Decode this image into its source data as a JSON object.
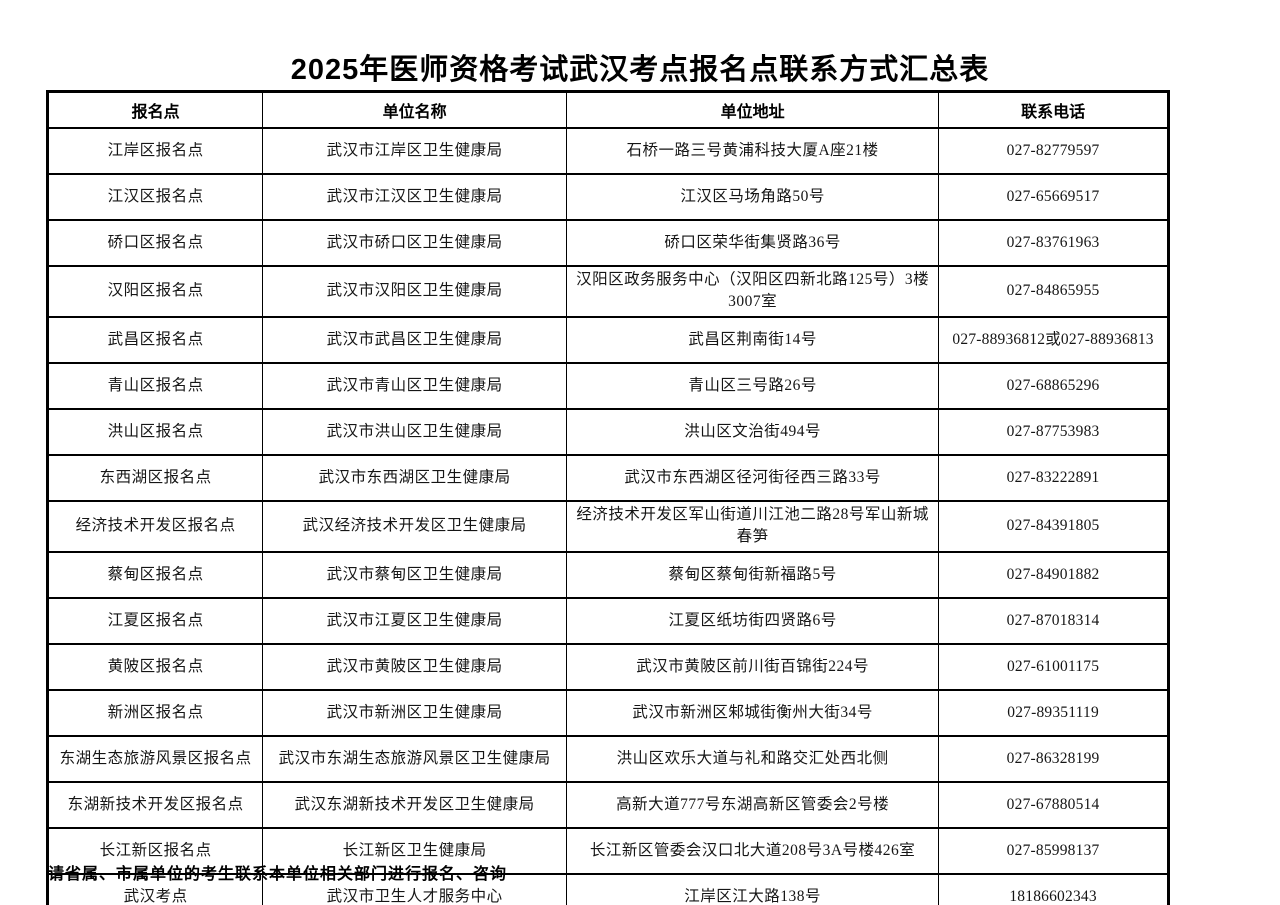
{
  "page": {
    "title": "2025年医师资格考试武汉考点报名点联系方式汇总表",
    "footnote": "请省属、市属单位的考生联系本单位相关部门进行报名、咨询"
  },
  "table": {
    "columns": [
      "报名点",
      "单位名称",
      "单位地址",
      "联系电话"
    ],
    "rows": [
      [
        "江岸区报名点",
        "武汉市江岸区卫生健康局",
        "石桥一路三号黄浦科技大厦A座21楼",
        "027-82779597"
      ],
      [
        "江汉区报名点",
        "武汉市江汉区卫生健康局",
        "江汉区马场角路50号",
        "027-65669517"
      ],
      [
        "硚口区报名点",
        "武汉市硚口区卫生健康局",
        "硚口区荣华街集贤路36号",
        "027-83761963"
      ],
      [
        "汉阳区报名点",
        "武汉市汉阳区卫生健康局",
        "汉阳区政务服务中心（汉阳区四新北路125号）3楼3007室",
        "027-84865955"
      ],
      [
        "武昌区报名点",
        "武汉市武昌区卫生健康局",
        "武昌区荆南街14号",
        "027-88936812或027-88936813"
      ],
      [
        "青山区报名点",
        "武汉市青山区卫生健康局",
        "青山区三号路26号",
        "027-68865296"
      ],
      [
        "洪山区报名点",
        "武汉市洪山区卫生健康局",
        "洪山区文治街494号",
        "027-87753983"
      ],
      [
        "东西湖区报名点",
        "武汉市东西湖区卫生健康局",
        "武汉市东西湖区径河街径西三路33号",
        "027-83222891"
      ],
      [
        "经济技术开发区报名点",
        "武汉经济技术开发区卫生健康局",
        "经济技术开发区军山街道川江池二路28号军山新城春笋",
        "027-84391805"
      ],
      [
        "蔡甸区报名点",
        "武汉市蔡甸区卫生健康局",
        "蔡甸区蔡甸街新福路5号",
        "027-84901882"
      ],
      [
        "江夏区报名点",
        "武汉市江夏区卫生健康局",
        "江夏区纸坊街四贤路6号",
        "027-87018314"
      ],
      [
        "黄陂区报名点",
        "武汉市黄陂区卫生健康局",
        "武汉市黄陂区前川街百锦街224号",
        "027-61001175"
      ],
      [
        "新洲区报名点",
        "武汉市新洲区卫生健康局",
        "武汉市新洲区邾城街衡州大街34号",
        "027-89351119"
      ],
      [
        "东湖生态旅游风景区报名点",
        "武汉市东湖生态旅游风景区卫生健康局",
        "洪山区欢乐大道与礼和路交汇处西北侧",
        "027-86328199"
      ],
      [
        "东湖新技术开发区报名点",
        "武汉东湖新技术开发区卫生健康局",
        "高新大道777号东湖高新区管委会2号楼",
        "027-67880514"
      ],
      [
        "长江新区报名点",
        "长江新区卫生健康局",
        "长江新区管委会汉口北大道208号3A号楼426室",
        "027-85998137"
      ],
      [
        "武汉考点",
        "武汉市卫生人才服务中心",
        "江岸区江大路138号",
        "18186602343"
      ]
    ]
  }
}
